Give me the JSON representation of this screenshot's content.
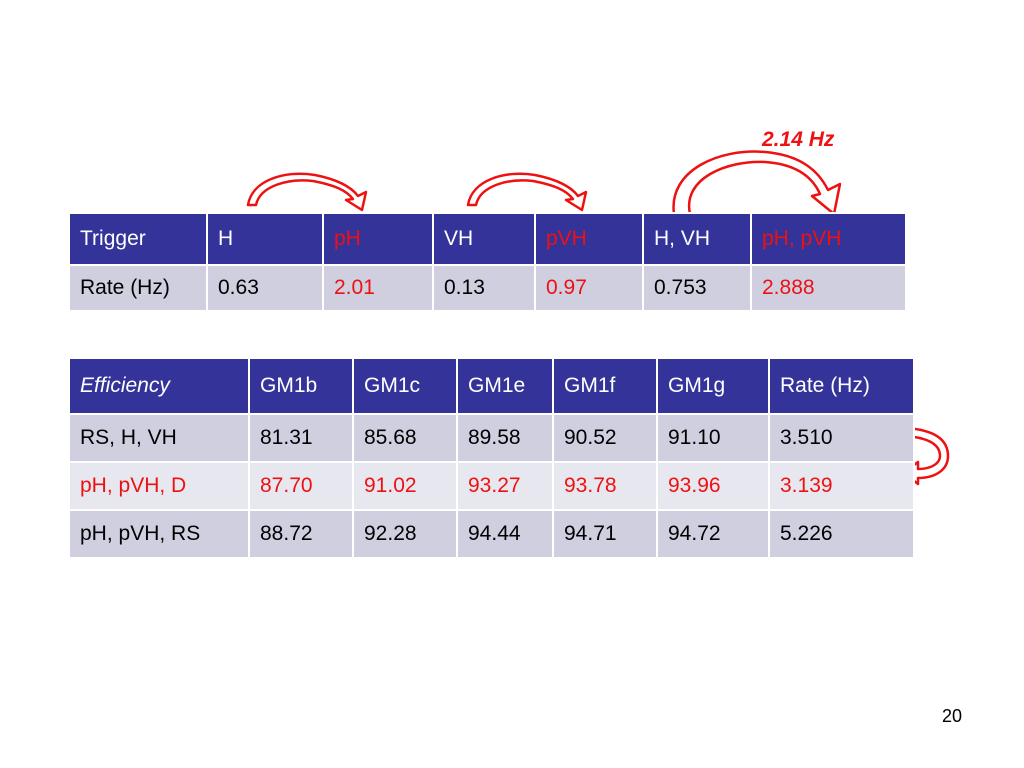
{
  "annotation": {
    "rate_label": "2.14 Hz"
  },
  "page_number": "20",
  "colors": {
    "header": "#333399",
    "row_dark": "#cfcfe0",
    "row_light": "#e7e7ef",
    "highlight": "#ee1111"
  },
  "trigger_table": {
    "headers": [
      "Trigger",
      "H",
      "pH",
      "VH",
      "pVH",
      "H, VH",
      "pH, pVH"
    ],
    "row_label": "Rate (Hz)",
    "values": [
      "0.63",
      "2.01",
      "0.13",
      "0.97",
      "0.753",
      "2.888"
    ]
  },
  "efficiency_table": {
    "headers": [
      "Efficiency",
      "GM1b",
      "GM1c",
      "GM1e",
      "GM1f",
      "GM1g",
      "Rate (Hz)"
    ],
    "rows": [
      [
        "RS, H, VH",
        "81.31",
        "85.68",
        "89.58",
        "90.52",
        "91.10",
        "3.510"
      ],
      [
        "pH, pVH, D",
        "87.70",
        "91.02",
        "93.27",
        "93.78",
        "93.96",
        "3.139"
      ],
      [
        "pH, pVH, RS",
        "88.72",
        "92.28",
        "94.44",
        "94.71",
        "94.72",
        "5.226"
      ]
    ]
  }
}
